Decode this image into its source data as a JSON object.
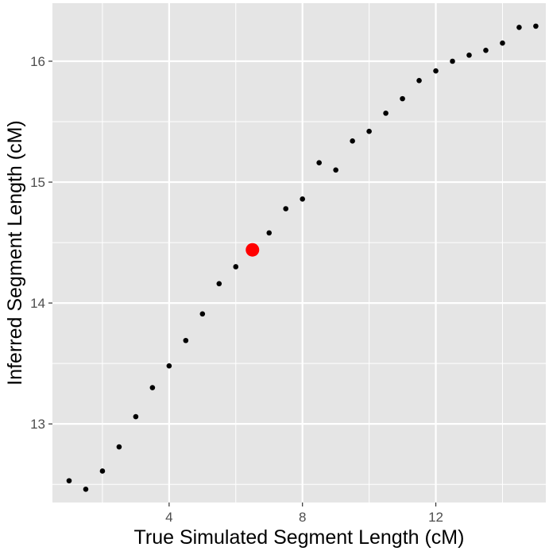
{
  "chart_data": {
    "type": "scatter",
    "xlabel": "True Simulated Segment Length (cM)",
    "ylabel": "Inferred Segment Length (cM)",
    "xlim": [
      0.5,
      15.3
    ],
    "ylim": [
      12.35,
      16.48
    ],
    "x_ticks": [
      4,
      8,
      12
    ],
    "x_tick_labels": [
      "4",
      "8",
      "12"
    ],
    "y_ticks": [
      13,
      14,
      15,
      16
    ],
    "y_tick_labels": [
      "13",
      "14",
      "15",
      "16"
    ],
    "grid": true,
    "panel_color": "#e5e5e5",
    "grid_color": "#ffffff",
    "point_color": "#000000",
    "highlight_color": "#ff0000",
    "points": [
      {
        "x": 1.0,
        "y": 12.53
      },
      {
        "x": 1.5,
        "y": 12.46
      },
      {
        "x": 2.0,
        "y": 12.61
      },
      {
        "x": 2.5,
        "y": 12.81
      },
      {
        "x": 3.0,
        "y": 13.06
      },
      {
        "x": 3.5,
        "y": 13.3
      },
      {
        "x": 4.0,
        "y": 13.48
      },
      {
        "x": 4.5,
        "y": 13.69
      },
      {
        "x": 5.0,
        "y": 13.91
      },
      {
        "x": 5.5,
        "y": 14.16
      },
      {
        "x": 6.0,
        "y": 14.3
      },
      {
        "x": 7.0,
        "y": 14.58
      },
      {
        "x": 7.5,
        "y": 14.78
      },
      {
        "x": 8.0,
        "y": 14.86
      },
      {
        "x": 8.5,
        "y": 15.16
      },
      {
        "x": 9.0,
        "y": 15.1
      },
      {
        "x": 9.5,
        "y": 15.34
      },
      {
        "x": 10.0,
        "y": 15.42
      },
      {
        "x": 10.5,
        "y": 15.57
      },
      {
        "x": 11.0,
        "y": 15.69
      },
      {
        "x": 11.5,
        "y": 15.84
      },
      {
        "x": 12.0,
        "y": 15.92
      },
      {
        "x": 12.5,
        "y": 16.0
      },
      {
        "x": 13.0,
        "y": 16.05
      },
      {
        "x": 13.5,
        "y": 16.09
      },
      {
        "x": 14.0,
        "y": 16.15
      },
      {
        "x": 14.5,
        "y": 16.28
      },
      {
        "x": 15.0,
        "y": 16.29
      }
    ],
    "highlight": {
      "x": 6.5,
      "y": 14.44
    }
  }
}
